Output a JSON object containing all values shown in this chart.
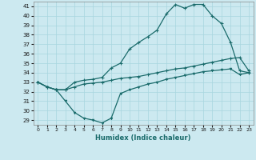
{
  "xlabel": "Humidex (Indice chaleur)",
  "bg_color": "#cce9f0",
  "line_color": "#1a6b6b",
  "grid_color": "#a8d5de",
  "xlim": [
    -0.5,
    23.5
  ],
  "ylim": [
    28.5,
    41.5
  ],
  "yticks": [
    29,
    30,
    31,
    32,
    33,
    34,
    35,
    36,
    37,
    38,
    39,
    40,
    41
  ],
  "xticks": [
    0,
    1,
    2,
    3,
    4,
    5,
    6,
    7,
    8,
    9,
    10,
    11,
    12,
    13,
    14,
    15,
    16,
    17,
    18,
    19,
    20,
    21,
    22,
    23
  ],
  "line1_x": [
    0,
    1,
    2,
    3,
    4,
    5,
    6,
    7,
    8,
    9,
    10,
    11,
    12,
    13,
    14,
    15,
    16,
    17,
    18,
    19,
    20,
    21,
    22,
    23
  ],
  "line1_y": [
    33.0,
    32.5,
    32.2,
    32.2,
    33.0,
    33.2,
    33.3,
    33.5,
    34.5,
    35.0,
    36.5,
    37.2,
    37.8,
    38.5,
    40.2,
    41.2,
    40.8,
    41.2,
    41.2,
    40.0,
    39.2,
    37.2,
    34.2,
    34.0
  ],
  "line2_x": [
    0,
    1,
    2,
    3,
    4,
    5,
    6,
    7,
    8,
    9,
    10,
    11,
    12,
    13,
    14,
    15,
    16,
    17,
    18,
    19,
    20,
    21,
    22,
    23
  ],
  "line2_y": [
    33.0,
    32.5,
    32.2,
    32.2,
    32.5,
    32.8,
    32.9,
    33.0,
    33.2,
    33.4,
    33.5,
    33.6,
    33.8,
    34.0,
    34.2,
    34.4,
    34.5,
    34.7,
    34.9,
    35.1,
    35.3,
    35.5,
    35.6,
    34.2
  ],
  "line3_x": [
    0,
    1,
    2,
    3,
    4,
    5,
    6,
    7,
    8,
    9,
    10,
    11,
    12,
    13,
    14,
    15,
    16,
    17,
    18,
    19,
    20,
    21,
    22,
    23
  ],
  "line3_y": [
    33.0,
    32.5,
    32.2,
    31.0,
    29.8,
    29.2,
    29.0,
    28.7,
    29.2,
    31.8,
    32.2,
    32.5,
    32.8,
    33.0,
    33.3,
    33.5,
    33.7,
    33.9,
    34.1,
    34.2,
    34.3,
    34.4,
    33.8,
    34.0
  ]
}
